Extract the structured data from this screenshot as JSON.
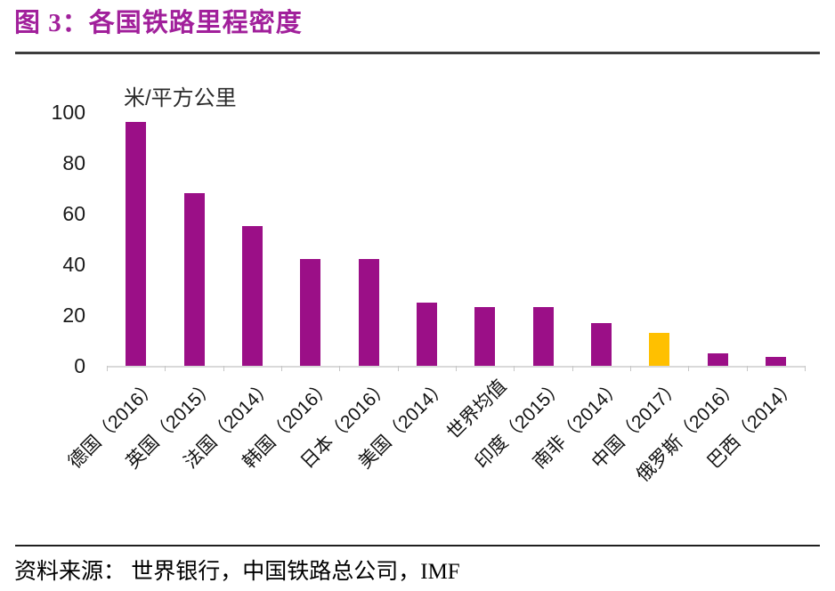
{
  "title": "图 3：各国铁路里程密度",
  "source": "资料来源： 世界银行，中国铁路总公司，IMF",
  "colors": {
    "title_purple": "#A1209B",
    "bar_purple": "#9B0F87",
    "highlight_gold": "#FFC000",
    "axis_gray": "#D9D9D9"
  },
  "chart_data": {
    "type": "bar",
    "title": "各国铁路里程密度",
    "unit_label": "米/平方公里",
    "categories": [
      "德国（2016）",
      "英国（2015）",
      "法国（2014）",
      "韩国（2016）",
      "日本（2016）",
      "美国（2014）",
      "世界均值",
      "印度（2015）",
      "南非（2014）",
      "中国（2017）",
      "俄罗斯（2016）",
      "巴西（2014）"
    ],
    "category_keys": [
      "germany",
      "uk",
      "france",
      "korea",
      "japan",
      "usa",
      "world-average",
      "india",
      "south-africa",
      "china",
      "russia",
      "brazil"
    ],
    "values": [
      96,
      68,
      55,
      42,
      42,
      25,
      23,
      23,
      17,
      13,
      5,
      3.5
    ],
    "bar_color": "#9B0F87",
    "highlight_index": 9,
    "highlight_color": "#FFC000",
    "ylabel": "米/平方公里",
    "ylim": [
      0,
      100
    ],
    "yticks": [
      0,
      20,
      40,
      60,
      80,
      100
    ],
    "grid": false,
    "legend": false
  }
}
